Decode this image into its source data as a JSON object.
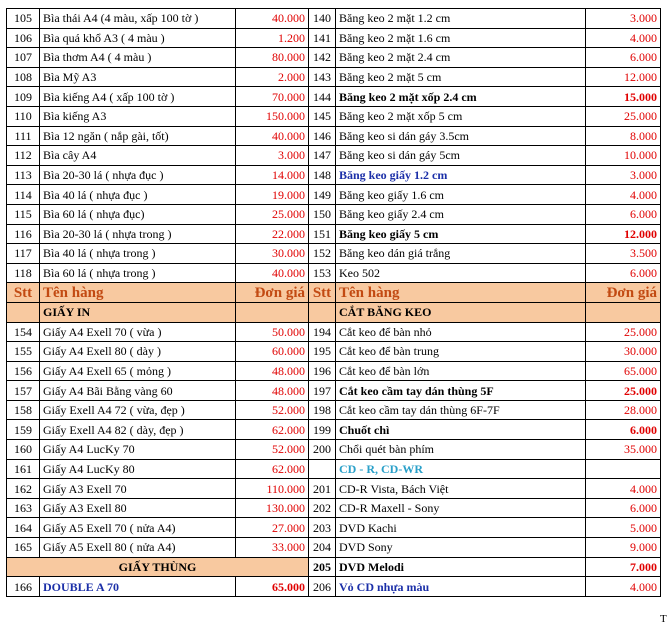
{
  "rows_top": [
    {
      "l": {
        "no": "105",
        "name": "Bìa thái A4 (4 màu, xấp 100 tờ )",
        "price": "40.000"
      },
      "r": {
        "no": "140",
        "name": "Băng keo 2 mặt 1.2 cm",
        "price": "3.000"
      }
    },
    {
      "l": {
        "no": "106",
        "name": "Bìa quá khổ  A3 ( 4 màu )",
        "price": "1.200"
      },
      "r": {
        "no": "141",
        "name": "Băng keo 2 mặt 1.6 cm",
        "price": "4.000"
      }
    },
    {
      "l": {
        "no": "107",
        "name": "Bìa thơm A4 ( 4 màu )",
        "price": "80.000"
      },
      "r": {
        "no": "142",
        "name": "Băng keo 2 mặt  2.4  cm",
        "price": "6.000"
      }
    },
    {
      "l": {
        "no": "108",
        "name": "Bìa Mỹ A3",
        "price": "2.000"
      },
      "r": {
        "no": "143",
        "name": "Băng keo 2 mặt  5 cm",
        "price": "12.000"
      }
    },
    {
      "l": {
        "no": "109",
        "name": "Bìa kiếng A4 ( xấp 100 tờ )",
        "price": "70.000"
      },
      "r": {
        "no": "144",
        "name": "Băng keo 2 mặt xốp 2.4 cm",
        "price": "15.000",
        "bold": true
      }
    },
    {
      "l": {
        "no": "110",
        "name": "Bìa kiếng A3",
        "price": "150.000"
      },
      "r": {
        "no": "145",
        "name": "Băng keo 2 mặt xốp 5 cm",
        "price": "25.000"
      }
    },
    {
      "l": {
        "no": "111",
        "name": "Bìa 12 ngăn ( nắp gài, tốt)",
        "price": "40.000"
      },
      "r": {
        "no": "146",
        "name": "Băng keo si dán gáy 3.5cm",
        "price": "8.000"
      }
    },
    {
      "l": {
        "no": "112",
        "name": "Bìa cây A4",
        "price": "3.000"
      },
      "r": {
        "no": "147",
        "name": "Băng keo si dán gáy 5cm",
        "price": "10.000"
      }
    },
    {
      "l": {
        "no": "113",
        "name": "Bìa 20-30 lá ( nhựa đục )",
        "price": "14.000"
      },
      "r": {
        "no": "148",
        "name": "Băng keo giấy 1.2 cm",
        "price": "3.000",
        "blue": true
      }
    },
    {
      "l": {
        "no": "114",
        "name": "Bìa 40 lá ( nhựa đục )",
        "price": "19.000"
      },
      "r": {
        "no": "149",
        "name": "Băng keo giấy 1.6 cm",
        "price": "4.000"
      }
    },
    {
      "l": {
        "no": "115",
        "name": "Bìa 60 lá ( nhựa đục)",
        "price": "25.000"
      },
      "r": {
        "no": "150",
        "name": "Băng keo giấy 2.4 cm",
        "price": "6.000"
      }
    },
    {
      "l": {
        "no": "116",
        "name": "Bìa 20-30 lá ( nhựa trong )",
        "price": "22.000"
      },
      "r": {
        "no": "151",
        "name": "Băng keo giấy 5 cm",
        "price": "12.000",
        "bold": true
      }
    },
    {
      "l": {
        "no": "117",
        "name": "Bìa 40 lá ( nhựa trong )",
        "price": "30.000"
      },
      "r": {
        "no": "152",
        "name": "Băng keo dán giá trắng",
        "price": "3.500"
      }
    },
    {
      "l": {
        "no": "118",
        "name": "Bìa 60 lá ( nhựa trong )",
        "price": "40.000"
      },
      "r": {
        "no": "153",
        "name": "Keo 502",
        "price": "6.000"
      }
    }
  ],
  "header": {
    "stt": "Stt",
    "name": "Tên hàng",
    "price": "Đơn giá"
  },
  "section_left": "GIẤY IN",
  "section_right": "CẮT BĂNG KEO",
  "rows_mid": [
    {
      "l": {
        "no": "154",
        "name": "Giấy A4  Exell 70 ( vừa )",
        "price": "50.000"
      },
      "r": {
        "no": "194",
        "name": "Cắt keo để bàn nhỏ",
        "price": "25.000"
      }
    },
    {
      "l": {
        "no": "155",
        "name": "Giấy A4  Exell 80  ( dày )",
        "price": "60.000"
      },
      "r": {
        "no": "195",
        "name": "Cắt keo để bàn trung",
        "price": "30.000"
      }
    },
    {
      "l": {
        "no": "156",
        "name": "Giấy A4 Exell 65 ( mỏng )",
        "price": "48.000"
      },
      "r": {
        "no": "196",
        "name": "Cắt keo để bàn lớn",
        "price": "65.000"
      }
    },
    {
      "l": {
        "no": "157",
        "name": "Giấy A4 Bãi Bằng vàng 60",
        "price": "48.000"
      },
      "r": {
        "no": "197",
        "name": "Cắt keo cầm tay dán thùng 5F",
        "price": "25.000",
        "bold": true
      }
    },
    {
      "l": {
        "no": "158",
        "name": "Giấy Exell  A4 72 ( vừa, đẹp )",
        "price": "52.000"
      },
      "r": {
        "no": "198",
        "name": "Cắt keo cầm tay dán thùng 6F-7F",
        "price": "28.000"
      }
    },
    {
      "l": {
        "no": "159",
        "name": "Giấy Exell A4 82 ( dày, đẹp )",
        "price": "62.000"
      },
      "r": {
        "no": "199",
        "name": "Chuốt chì",
        "price": "6.000",
        "bold": true
      }
    },
    {
      "l": {
        "no": "160",
        "name": "Giấy A4  LucKy 70",
        "price": "52.000"
      },
      "r": {
        "no": "200",
        "name": "Chổi quét bàn phím",
        "price": "35.000"
      }
    },
    {
      "l": {
        "no": "161",
        "name": "Giấy A4  LucKy 80",
        "price": "62.000"
      },
      "r": {
        "no": "",
        "name": "CD - R, CD-WR",
        "price": "",
        "cd": true
      }
    },
    {
      "l": {
        "no": "162",
        "name": "Giấy A3 Exell 70",
        "price": "110.000"
      },
      "r": {
        "no": "201",
        "name": "CD-R Vista, Bách Việt",
        "price": "4.000"
      }
    },
    {
      "l": {
        "no": "163",
        "name": "Giấy A3 Exell 80",
        "price": "130.000"
      },
      "r": {
        "no": "202",
        "name": "CD-R Maxell - Sony",
        "price": "6.000"
      }
    },
    {
      "l": {
        "no": "164",
        "name": "Giấy A5 Exell 70 ( nửa A4)",
        "price": "27.000"
      },
      "r": {
        "no": "203",
        "name": "DVD Kachi",
        "price": "5.000"
      }
    },
    {
      "l": {
        "no": "165",
        "name": "Giấy A5 Exell 80 ( nửa A4)",
        "price": "33.000"
      },
      "r": {
        "no": "204",
        "name": "DVD Sony",
        "price": "9.000"
      }
    }
  ],
  "section_left2": "GIẤY THÙNG",
  "row_205": {
    "no": "205",
    "name": "DVD Melodi",
    "price": "7.000"
  },
  "row_last": {
    "l": {
      "no": "166",
      "name": "DOUBLE A 70",
      "price": "65.000"
    },
    "r": {
      "no": "206",
      "name": "Vỏ CD nhựa màu",
      "price": "4.000"
    }
  },
  "stray_text": "T"
}
